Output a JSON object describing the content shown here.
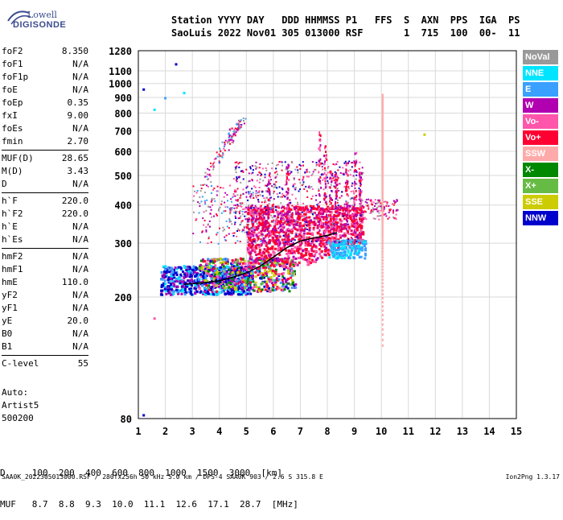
{
  "logo": {
    "top": "Lowell",
    "bottom": "DIGISONDE"
  },
  "header": {
    "line1": "Station YYYY DAY   DDD HHMMSS P1   FFS  S  AXN  PPS  IGA  PS",
    "line2": "SaoLuis 2022 Nov01 305 013000 RSF       1  715  100  00-  11"
  },
  "params": [
    {
      "name": "foF2",
      "value": "8.350"
    },
    {
      "name": "foF1",
      "value": "N/A"
    },
    {
      "name": "foF1p",
      "value": "N/A"
    },
    {
      "name": "foE",
      "value": "N/A"
    },
    {
      "name": "foEp",
      "value": "0.35"
    },
    {
      "name": "fxI",
      "value": "9.00"
    },
    {
      "name": "foEs",
      "value": "N/A"
    },
    {
      "name": "fmin",
      "value": "2.70"
    },
    {
      "sep": true
    },
    {
      "name": "MUF(D)",
      "value": "28.65"
    },
    {
      "name": "M(D)",
      "value": "3.43"
    },
    {
      "name": "D",
      "value": "N/A"
    },
    {
      "sep": true
    },
    {
      "name": "h`F",
      "value": "220.0"
    },
    {
      "name": "h`F2",
      "value": "220.0"
    },
    {
      "name": "h`E",
      "value": "N/A"
    },
    {
      "name": "h`Es",
      "value": "N/A"
    },
    {
      "sep": true
    },
    {
      "name": "hmF2",
      "value": "N/A"
    },
    {
      "name": "hmF1",
      "value": "N/A"
    },
    {
      "name": "hmE",
      "value": "110.0"
    },
    {
      "name": "yF2",
      "value": "N/A"
    },
    {
      "name": "yF1",
      "value": "N/A"
    },
    {
      "name": "yE",
      "value": "20.0"
    },
    {
      "name": "B0",
      "value": "N/A"
    },
    {
      "name": "B1",
      "value": "N/A"
    },
    {
      "sep": true
    },
    {
      "name": "C-level",
      "value": "55"
    }
  ],
  "auto": [
    "Auto:",
    "Artist5",
    "500200"
  ],
  "legend": [
    {
      "label": "NoVal",
      "color": "#999999"
    },
    {
      "label": "NNE",
      "color": "#00e5ff"
    },
    {
      "label": "E",
      "color": "#3aa0ff"
    },
    {
      "label": "W",
      "color": "#b000b0"
    },
    {
      "label": "Vo-",
      "color": "#ff55aa"
    },
    {
      "label": "Vo+",
      "color": "#ff0033"
    },
    {
      "label": "SSW",
      "color": "#ffaaaa"
    },
    {
      "label": "X-",
      "color": "#008800"
    },
    {
      "label": "X+",
      "color": "#66bb44"
    },
    {
      "label": "SSE",
      "color": "#cccc00"
    },
    {
      "label": "NNW",
      "color": "#0000cc"
    }
  ],
  "bottom_table": {
    "line1": "D     100  200  400  600  800  1000  1500  3000  [km]",
    "line2": "MUF   8.7  8.8  9.3  10.0  11.1  12.6  17.1  28.7  [MHz]"
  },
  "footer": "SAA0K_2022305013000.RSF / 280fx256h 50 kHz 5.0 km / DPS-4 SAA0K 903 / 2.6 S 315.8 E",
  "version": "Ion2Png 1.3.17",
  "chart_data": {
    "type": "scatter",
    "xlim": [
      1,
      15
    ],
    "ylim": [
      80,
      1280
    ],
    "y_scale": "log",
    "x_ticks": [
      1,
      2,
      3,
      4,
      5,
      6,
      7,
      8,
      9,
      10,
      11,
      12,
      13,
      14,
      15
    ],
    "y_ticks": [
      80,
      200,
      300,
      400,
      500,
      600,
      700,
      800,
      900,
      1000,
      1100,
      1280
    ],
    "grid": true,
    "trace": {
      "color": "#000000",
      "x": [
        2.7,
        3.0,
        3.5,
        4.0,
        4.5,
        5.0,
        5.5,
        6.0,
        6.5,
        7.0,
        7.5,
        8.0,
        8.35
      ],
      "y": [
        220,
        221,
        223,
        226,
        232,
        240,
        252,
        270,
        290,
        305,
        312,
        318,
        325
      ]
    },
    "echo_regions": [
      {
        "name": "F-trace low",
        "x": [
          1.8,
          8.4
        ],
        "y": [
          205,
          290
        ]
      },
      {
        "name": "F2 main",
        "x": [
          5.0,
          9.5
        ],
        "y": [
          250,
          400
        ]
      },
      {
        "name": "spread",
        "x": [
          3.0,
          9.5
        ],
        "y": [
          290,
          550
        ]
      },
      {
        "name": "upper diffuse",
        "x": [
          3.5,
          8.0
        ],
        "y": [
          400,
          780
        ]
      },
      {
        "name": "E-mode",
        "x": [
          8.0,
          9.5
        ],
        "y": [
          270,
          320
        ]
      },
      {
        "name": "10 MHz band",
        "x": [
          10.0,
          10.1
        ],
        "y": [
          140,
          930
        ]
      }
    ],
    "isolated_points": [
      {
        "x": 2.4,
        "y": 1155,
        "c": "#0000cc"
      },
      {
        "x": 1.2,
        "y": 955,
        "c": "#0000cc"
      },
      {
        "x": 2.0,
        "y": 895,
        "c": "#3aa0ff"
      },
      {
        "x": 1.6,
        "y": 820,
        "c": "#00e5ff"
      },
      {
        "x": 2.7,
        "y": 930,
        "c": "#00e5ff"
      },
      {
        "x": 11.6,
        "y": 680,
        "c": "#cccc00"
      },
      {
        "x": 1.2,
        "y": 82,
        "c": "#0000cc"
      },
      {
        "x": 1.6,
        "y": 170,
        "c": "#ff55aa"
      }
    ]
  }
}
